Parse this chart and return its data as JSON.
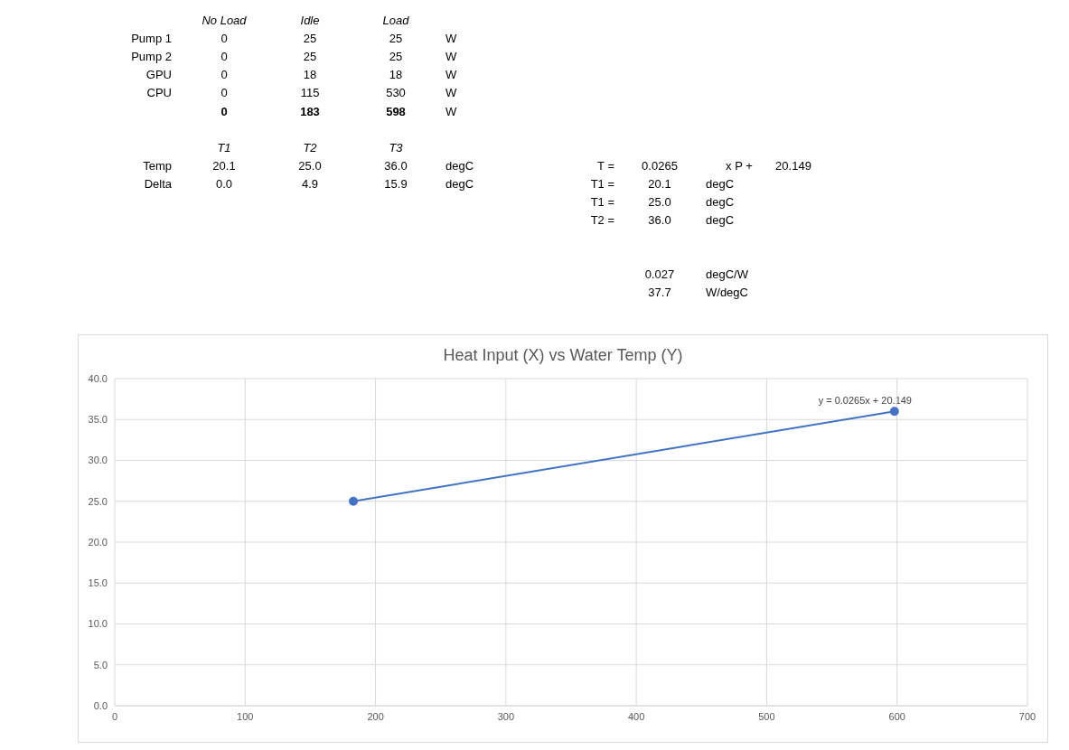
{
  "chart_data": [
    {
      "type": "other",
      "annotations": [
        "No Load",
        "Idle",
        "Load",
        "Pump 1",
        "0",
        "25",
        "25",
        "W",
        "Pump 2",
        "0",
        "25",
        "25",
        "W",
        "GPU",
        "0",
        "18",
        "18",
        "W",
        "CPU",
        "0",
        "115",
        "530",
        "W",
        "0",
        "183",
        "598",
        "W",
        "T1",
        "T2",
        "T3",
        "Temp",
        "20.1",
        "25.0",
        "36.0",
        "degC",
        "T =",
        "0.0265",
        "x P +",
        "20.149",
        "Delta",
        "0.0",
        "4.9",
        "15.9",
        "degC",
        "T1 =",
        "20.1",
        "degC",
        "T1 =",
        "25.0",
        "degC",
        "T2 =",
        "36.0",
        "degC",
        "0.027",
        "degC/W",
        "37.7",
        "W/degC"
      ]
    },
    {
      "type": "line",
      "title": "Heat Input (X) vs Water Temp (Y)",
      "x": [
        183,
        598
      ],
      "series": [
        {
          "color": "#4472c4",
          "values": [
            25,
            36
          ]
        }
      ],
      "marker": "circle",
      "grid": true,
      "xlim": [
        0,
        700
      ],
      "xticks": [
        0,
        100,
        200,
        300,
        400,
        500,
        600,
        700
      ],
      "ylim": [
        0,
        40
      ],
      "yticks": [
        {
          "value": 0,
          "label": "0.0"
        },
        {
          "value": 5,
          "label": "5.0"
        },
        {
          "value": 10,
          "label": "10.0"
        },
        {
          "value": 15,
          "label": "15.0"
        },
        {
          "value": 20,
          "label": "20.0"
        },
        {
          "value": 25,
          "label": "25.0"
        },
        {
          "value": 30,
          "label": "30.0"
        },
        {
          "value": 35,
          "label": "35.0"
        },
        {
          "value": 40,
          "label": "40.0"
        }
      ],
      "annotations": [
        "y = 0.0265x + 20.149"
      ]
    }
  ]
}
